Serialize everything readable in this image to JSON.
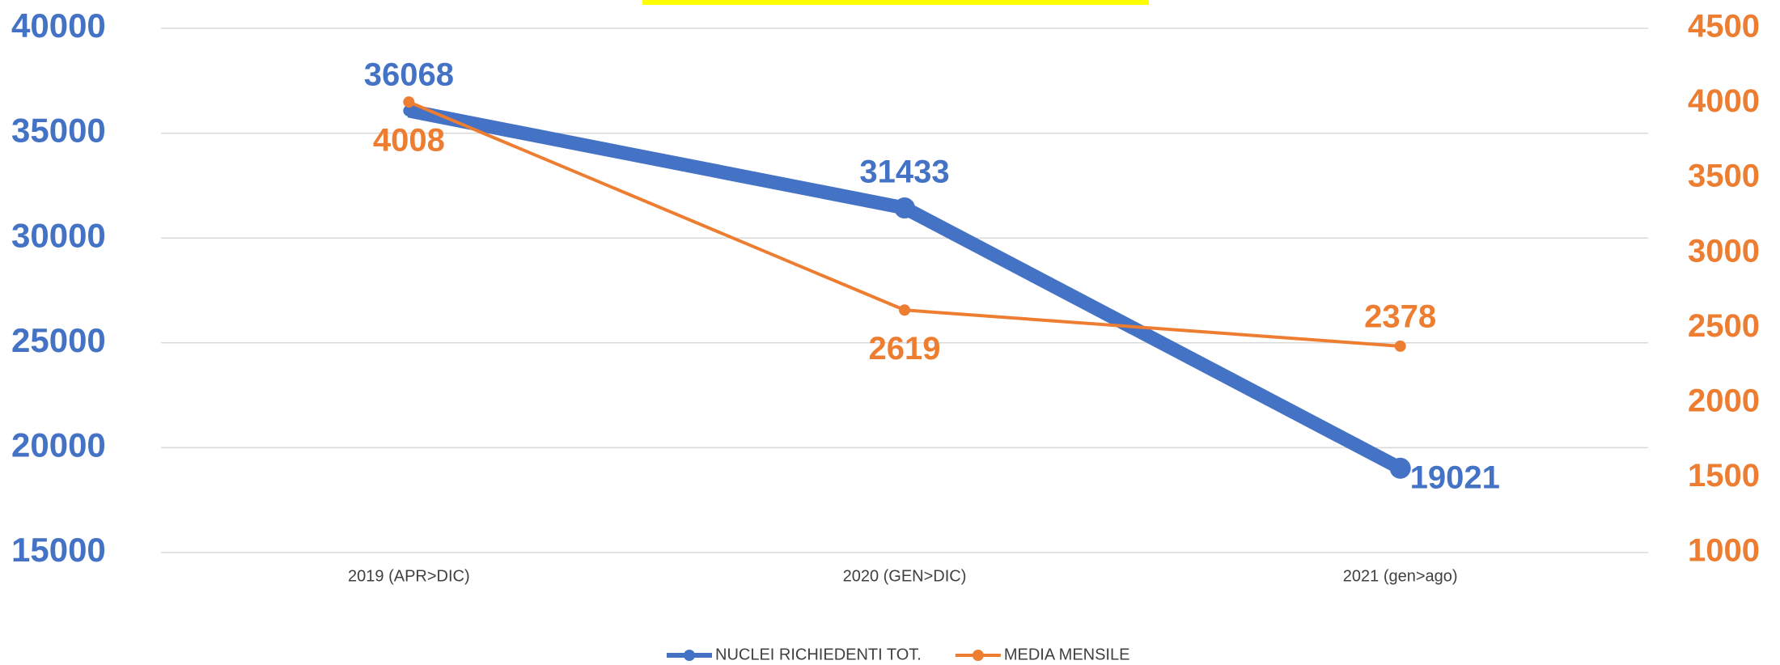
{
  "chart_data": {
    "type": "line",
    "categories": [
      "2019 (APR>DIC)",
      "2020 (GEN>DIC)",
      "2021 (gen>ago)"
    ],
    "series": [
      {
        "name": "NUCLEI RICHIEDENTI TOT.",
        "color": "#4472c4",
        "values": [
          36068,
          31433,
          19021
        ]
      },
      {
        "name": "MEDIA MENSILE",
        "color": "#ed7d31",
        "values": [
          4008,
          2619,
          2378
        ],
        "axis": "y2"
      }
    ],
    "ylim": [
      15000,
      40000
    ],
    "yticks": [
      15000,
      20000,
      25000,
      30000,
      35000,
      40000
    ],
    "y2lim": [
      1000,
      4500
    ],
    "y2ticks": [
      1000,
      1500,
      2000,
      2500,
      3000,
      3500,
      4000,
      4500
    ],
    "grid": true,
    "legend": "bottom"
  }
}
